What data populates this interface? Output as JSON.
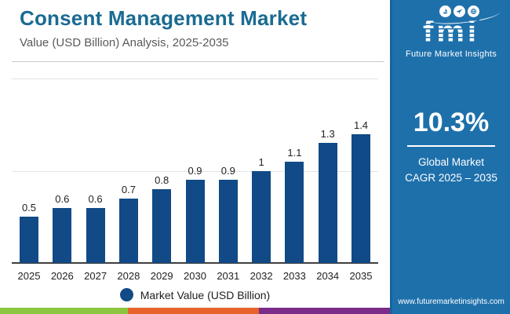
{
  "header": {
    "title": "Consent Management Market",
    "subtitle": "Value (USD Billion) Analysis, 2025-2035"
  },
  "chart_data": {
    "type": "bar",
    "title": "Consent Management Market Value (USD Billion) Analysis, 2025-2035",
    "categories": [
      "2025",
      "2026",
      "2027",
      "2028",
      "2029",
      "2030",
      "2031",
      "2032",
      "2033",
      "2034",
      "2035"
    ],
    "values": [
      0.5,
      0.6,
      0.6,
      0.7,
      0.8,
      0.9,
      0.9,
      1,
      1.1,
      1.3,
      1.4
    ],
    "bar_labels": [
      "0.5",
      "0.6",
      "0.6",
      "0.7",
      "0.8",
      "0.9",
      "0.9",
      "1",
      "1.1",
      "1.3",
      "1.4"
    ],
    "xlabel": "",
    "ylabel": "",
    "ylim": [
      0,
      2
    ],
    "gridline_values": [
      1,
      2
    ],
    "grid": "horizontal",
    "legend": [
      "Market Value (USD Billion)"
    ],
    "legend_position": "bottom"
  },
  "legend": {
    "label": "Market Value (USD Billion)"
  },
  "sidebar": {
    "logo": {
      "text": "fmi",
      "tagline": "Future Market Insights",
      "badge_icons": [
        "boat-icon",
        "plane-icon",
        "globe-icon"
      ]
    },
    "stat": {
      "value": "10.3%",
      "label_line1": "Global Market",
      "label_line2": "CAGR 2025 – 2035"
    },
    "footer_url": "www.futuremarketinsights.com"
  },
  "colors": {
    "title": "#1A6B92",
    "bar": "#114A86",
    "sidebar_bg": "#1E70AB",
    "strip_green": "#8CC540",
    "strip_orange": "#E8632C",
    "strip_purple": "#7B2C88",
    "gridline": "#E4E4E4",
    "axis": "#3F3F3F"
  }
}
